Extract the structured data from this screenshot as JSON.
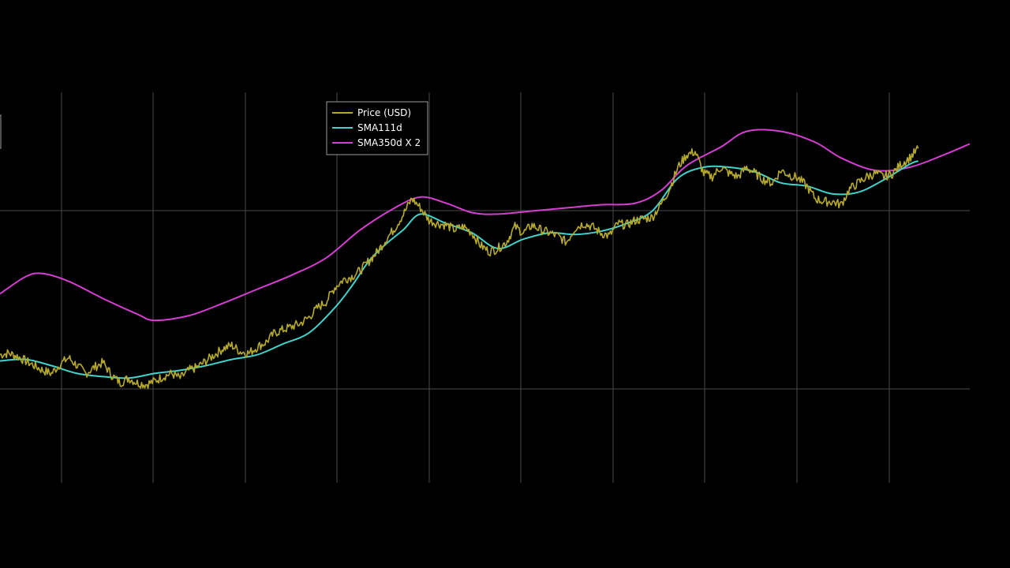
{
  "chart_data": {
    "type": "line",
    "title": "",
    "xlabel": "",
    "ylabel": "",
    "y_scale": "log",
    "grid": true,
    "legend_placement": "top-center",
    "legend": [
      {
        "key": "price",
        "label": "Price (USD)",
        "color": "#b8ab2c"
      },
      {
        "key": "sma111",
        "label": "SMA111d",
        "color": "#41d3cc"
      },
      {
        "key": "sma350x2",
        "label": "SMA350d X 2",
        "color": "#d43fd1"
      }
    ],
    "colors": {
      "background": "#000000",
      "grid": "#4a4a4a",
      "legend_border": "#9a9a9a"
    },
    "series": [
      {
        "name": "Price (USD)",
        "key": "price",
        "color": "#b8ab2c",
        "points": [
          [
            0,
            4.62
          ],
          [
            1,
            4.63
          ],
          [
            2,
            4.61
          ],
          [
            3,
            4.58
          ],
          [
            4,
            4.55
          ],
          [
            5,
            4.52
          ],
          [
            6,
            4.5
          ],
          [
            7,
            4.56
          ],
          [
            8,
            4.6
          ],
          [
            9,
            4.55
          ],
          [
            10,
            4.5
          ],
          [
            11,
            4.54
          ],
          [
            12,
            4.57
          ],
          [
            13,
            4.49
          ],
          [
            14,
            4.44
          ],
          [
            15,
            4.47
          ],
          [
            16,
            4.44
          ],
          [
            17,
            4.43
          ],
          [
            18,
            4.45
          ],
          [
            19,
            4.48
          ],
          [
            20,
            4.5
          ],
          [
            21,
            4.47
          ],
          [
            22,
            4.52
          ],
          [
            23,
            4.54
          ],
          [
            24,
            4.58
          ],
          [
            25,
            4.62
          ],
          [
            26,
            4.66
          ],
          [
            27,
            4.68
          ],
          [
            28,
            4.64
          ],
          [
            29,
            4.63
          ],
          [
            30,
            4.67
          ],
          [
            31,
            4.7
          ],
          [
            32,
            4.76
          ],
          [
            33,
            4.78
          ],
          [
            34,
            4.8
          ],
          [
            35,
            4.82
          ],
          [
            36,
            4.86
          ],
          [
            37,
            4.92
          ],
          [
            38,
            4.96
          ],
          [
            39,
            5.05
          ],
          [
            40,
            5.1
          ],
          [
            41,
            5.12
          ],
          [
            42,
            5.16
          ],
          [
            43,
            5.22
          ],
          [
            44,
            5.28
          ],
          [
            45,
            5.36
          ],
          [
            46,
            5.43
          ],
          [
            47,
            5.52
          ],
          [
            48,
            5.62
          ],
          [
            49,
            5.56
          ],
          [
            50,
            5.48
          ],
          [
            51,
            5.46
          ],
          [
            52,
            5.45
          ],
          [
            53,
            5.42
          ],
          [
            54,
            5.44
          ],
          [
            55,
            5.4
          ],
          [
            56,
            5.32
          ],
          [
            57,
            5.28
          ],
          [
            58,
            5.3
          ],
          [
            59,
            5.34
          ],
          [
            60,
            5.44
          ],
          [
            61,
            5.4
          ],
          [
            62,
            5.45
          ],
          [
            63,
            5.42
          ],
          [
            64,
            5.4
          ],
          [
            65,
            5.38
          ],
          [
            66,
            5.34
          ],
          [
            67,
            5.43
          ],
          [
            68,
            5.46
          ],
          [
            69,
            5.44
          ],
          [
            70,
            5.4
          ],
          [
            71,
            5.38
          ],
          [
            72,
            5.46
          ],
          [
            73,
            5.45
          ],
          [
            74,
            5.48
          ],
          [
            75,
            5.49
          ],
          [
            76,
            5.5
          ],
          [
            77,
            5.58
          ],
          [
            78,
            5.68
          ],
          [
            79,
            5.82
          ],
          [
            80,
            5.9
          ],
          [
            81,
            5.92
          ],
          [
            82,
            5.78
          ],
          [
            83,
            5.76
          ],
          [
            84,
            5.82
          ],
          [
            85,
            5.78
          ],
          [
            86,
            5.76
          ],
          [
            87,
            5.82
          ],
          [
            88,
            5.78
          ],
          [
            89,
            5.74
          ],
          [
            90,
            5.72
          ],
          [
            91,
            5.8
          ],
          [
            92,
            5.77
          ],
          [
            93,
            5.75
          ],
          [
            94,
            5.7
          ],
          [
            95,
            5.62
          ],
          [
            96,
            5.6
          ],
          [
            97,
            5.6
          ],
          [
            98,
            5.58
          ],
          [
            99,
            5.68
          ],
          [
            100,
            5.72
          ],
          [
            101,
            5.76
          ],
          [
            102,
            5.78
          ],
          [
            103,
            5.76
          ],
          [
            104,
            5.78
          ],
          [
            105,
            5.84
          ],
          [
            106,
            5.88
          ],
          [
            107,
            5.94
          ]
        ]
      },
      {
        "name": "SMA111d",
        "key": "sma111",
        "color": "#41d3cc",
        "points": [
          [
            0,
            4.58
          ],
          [
            3,
            4.59
          ],
          [
            6,
            4.55
          ],
          [
            9,
            4.5
          ],
          [
            12,
            4.48
          ],
          [
            15,
            4.47
          ],
          [
            18,
            4.5
          ],
          [
            21,
            4.52
          ],
          [
            24,
            4.55
          ],
          [
            27,
            4.59
          ],
          [
            30,
            4.62
          ],
          [
            33,
            4.69
          ],
          [
            36,
            4.76
          ],
          [
            39,
            4.92
          ],
          [
            41,
            5.06
          ],
          [
            43,
            5.22
          ],
          [
            45,
            5.33
          ],
          [
            47,
            5.42
          ],
          [
            49,
            5.52
          ],
          [
            52,
            5.46
          ],
          [
            55,
            5.4
          ],
          [
            58,
            5.3
          ],
          [
            61,
            5.36
          ],
          [
            64,
            5.4
          ],
          [
            67,
            5.39
          ],
          [
            70,
            5.41
          ],
          [
            73,
            5.46
          ],
          [
            76,
            5.54
          ],
          [
            79,
            5.75
          ],
          [
            82,
            5.82
          ],
          [
            85,
            5.82
          ],
          [
            88,
            5.79
          ],
          [
            91,
            5.72
          ],
          [
            94,
            5.7
          ],
          [
            97,
            5.65
          ],
          [
            100,
            5.66
          ],
          [
            103,
            5.74
          ],
          [
            106,
            5.84
          ],
          [
            107,
            5.86
          ]
        ]
      },
      {
        "name": "SMA350d X 2",
        "key": "sma350x2",
        "color": "#d43fd1",
        "points": [
          [
            0,
            5.01
          ],
          [
            3,
            5.12
          ],
          [
            5,
            5.14
          ],
          [
            8,
            5.09
          ],
          [
            12,
            4.98
          ],
          [
            16,
            4.88
          ],
          [
            18,
            4.84
          ],
          [
            22,
            4.87
          ],
          [
            26,
            4.95
          ],
          [
            30,
            5.04
          ],
          [
            34,
            5.13
          ],
          [
            38,
            5.24
          ],
          [
            42,
            5.42
          ],
          [
            46,
            5.56
          ],
          [
            49,
            5.63
          ],
          [
            52,
            5.59
          ],
          [
            55,
            5.53
          ],
          [
            58,
            5.52
          ],
          [
            62,
            5.54
          ],
          [
            66,
            5.56
          ],
          [
            70,
            5.58
          ],
          [
            74,
            5.59
          ],
          [
            77,
            5.67
          ],
          [
            80,
            5.83
          ],
          [
            84,
            5.95
          ],
          [
            87,
            6.05
          ],
          [
            91,
            6.05
          ],
          [
            95,
            5.98
          ],
          [
            98,
            5.88
          ],
          [
            102,
            5.8
          ],
          [
            106,
            5.82
          ],
          [
            110,
            5.9
          ],
          [
            113,
            5.97
          ]
        ]
      }
    ]
  }
}
